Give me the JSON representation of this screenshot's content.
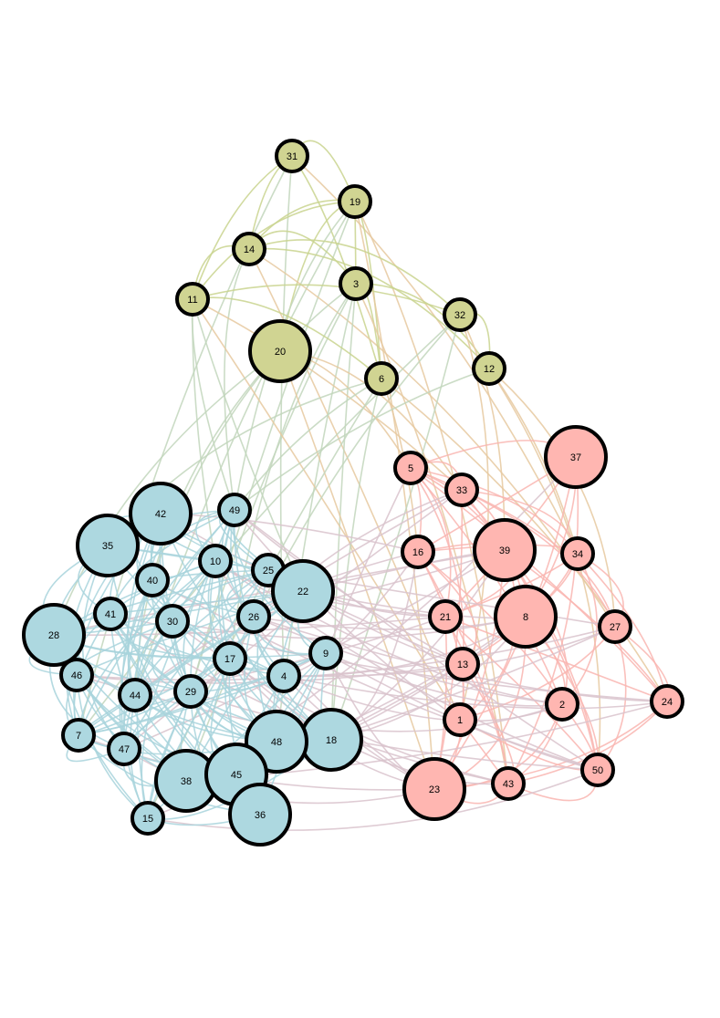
{
  "nodes": [
    {
      "label": "31"
    },
    {
      "label": "19"
    },
    {
      "label": "14"
    },
    {
      "label": "3"
    },
    {
      "label": "11"
    },
    {
      "label": "32"
    },
    {
      "label": "20"
    },
    {
      "label": "6"
    },
    {
      "label": "12"
    },
    {
      "label": "37"
    },
    {
      "label": "5"
    },
    {
      "label": "33"
    },
    {
      "label": "39"
    },
    {
      "label": "16"
    },
    {
      "label": "34"
    },
    {
      "label": "8"
    },
    {
      "label": "21"
    },
    {
      "label": "27"
    },
    {
      "label": "13"
    },
    {
      "label": "2"
    },
    {
      "label": "24"
    },
    {
      "label": "1"
    },
    {
      "label": "50"
    },
    {
      "label": "43"
    },
    {
      "label": "23"
    },
    {
      "label": "42"
    },
    {
      "label": "49"
    },
    {
      "label": "35"
    },
    {
      "label": "10"
    },
    {
      "label": "25"
    },
    {
      "label": "22"
    },
    {
      "label": "40"
    },
    {
      "label": "41"
    },
    {
      "label": "30"
    },
    {
      "label": "26"
    },
    {
      "label": "28"
    },
    {
      "label": "9"
    },
    {
      "label": "17"
    },
    {
      "label": "4"
    },
    {
      "label": "46"
    },
    {
      "label": "44"
    },
    {
      "label": "29"
    },
    {
      "label": "18"
    },
    {
      "label": "48"
    },
    {
      "label": "7"
    },
    {
      "label": "47"
    },
    {
      "label": "38"
    },
    {
      "label": "45"
    },
    {
      "label": "36"
    },
    {
      "label": "15"
    }
  ]
}
